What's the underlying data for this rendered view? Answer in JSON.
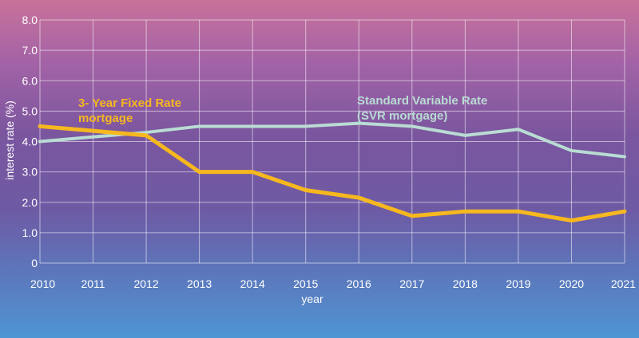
{
  "chart_data": {
    "type": "line",
    "title": "",
    "xlabel": "year",
    "ylabel": "interest rate (%)",
    "x": [
      "2010",
      "2011",
      "2012",
      "2013",
      "2014",
      "2015",
      "2016",
      "2017",
      "2018",
      "2019",
      "2020",
      "2021"
    ],
    "ylim": [
      0,
      8
    ],
    "yticks": [
      "0",
      "1.0",
      "2.0",
      "3.0",
      "4.0",
      "5.0",
      "6.0",
      "7.0",
      "8.0"
    ],
    "grid": true,
    "series": [
      {
        "name": "Standard Variable Rate (SVR mortgage)",
        "label_lines": [
          "Standard Variable Rate",
          "(SVR mortgage)"
        ],
        "color": "#b9dcd3",
        "values": [
          4.0,
          4.15,
          4.3,
          4.5,
          4.5,
          4.5,
          4.6,
          4.5,
          4.2,
          4.4,
          3.7,
          3.5
        ]
      },
      {
        "name": "3- Year Fixed Rate mortgage",
        "label_lines": [
          "3- Year Fixed Rate",
          "mortgage"
        ],
        "color": "#f6b81e",
        "values": [
          4.5,
          4.35,
          4.2,
          3.0,
          3.0,
          2.4,
          2.15,
          1.55,
          1.7,
          1.7,
          1.4,
          1.7
        ]
      }
    ]
  }
}
